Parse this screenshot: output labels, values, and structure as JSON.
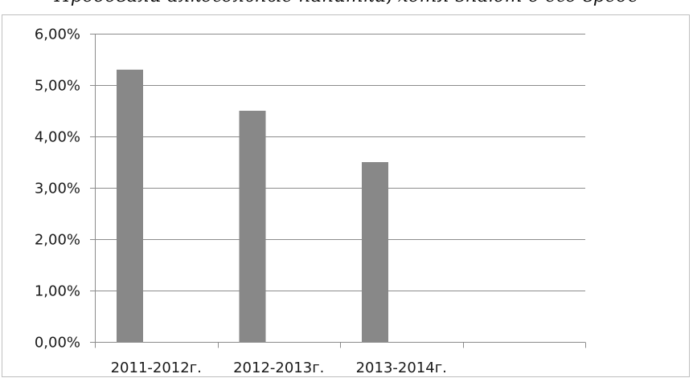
{
  "chart_data": {
    "type": "bar",
    "title": "Пробовали алкогольные напитки, хотя знают о его вреде",
    "categories": [
      "2011-2012г.",
      "2012-2013г.",
      "2013-2014г.",
      ""
    ],
    "values": [
      0.053,
      0.045,
      0.035,
      null
    ],
    "ylim": [
      0,
      0.06
    ],
    "ytick_step": 0.01,
    "ytick_labels": [
      "0,00%",
      "1,00%",
      "2,00%",
      "3,00%",
      "4,00%",
      "5,00%",
      "6,00%"
    ],
    "xlabel": "",
    "ylabel": "",
    "grid": true,
    "legend": "none",
    "bar_color": "#888888",
    "grid_color": "#8c8c8c"
  }
}
